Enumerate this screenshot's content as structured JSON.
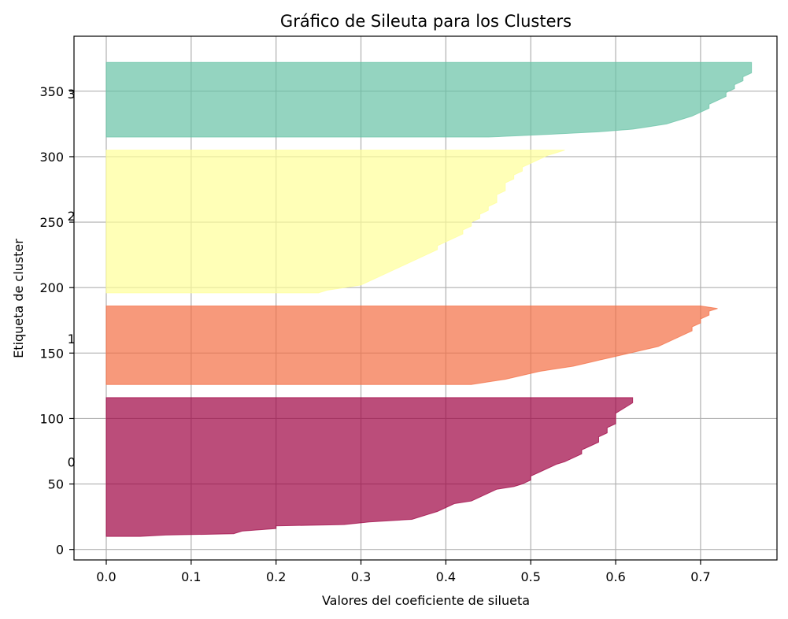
{
  "chart_data": {
    "type": "area",
    "title": "Gráfico de Sileuta para los Clusters",
    "xlabel": "Valores del coeficiente de silueta",
    "ylabel": "Etiqueta de cluster",
    "xlim": [
      -0.038,
      0.79
    ],
    "ylim": [
      -8,
      392
    ],
    "xticks": [
      0.0,
      0.1,
      0.2,
      0.3,
      0.4,
      0.5,
      0.6,
      0.7
    ],
    "xtick_labels": [
      "0.0",
      "0.1",
      "0.2",
      "0.3",
      "0.4",
      "0.5",
      "0.6",
      "0.7"
    ],
    "yticks": [
      0,
      50,
      100,
      150,
      200,
      250,
      300,
      350
    ],
    "ytick_labels": [
      "0",
      "50",
      "100",
      "150",
      "200",
      "250",
      "300",
      "350"
    ],
    "grid": true,
    "clusters": [
      {
        "label": "0",
        "label_y": 67,
        "color": "#9e0142",
        "y_lower": 10,
        "y_upper": 116,
        "profile": [
          [
            10,
            0.04
          ],
          [
            11,
            0.07
          ],
          [
            12,
            0.15
          ],
          [
            14,
            0.16
          ],
          [
            16,
            0.2
          ],
          [
            18,
            0.2
          ],
          [
            19,
            0.28
          ],
          [
            21,
            0.31
          ],
          [
            23,
            0.36
          ],
          [
            25,
            0.37
          ],
          [
            27,
            0.38
          ],
          [
            29,
            0.39
          ],
          [
            32,
            0.4
          ],
          [
            35,
            0.41
          ],
          [
            37,
            0.43
          ],
          [
            40,
            0.44
          ],
          [
            43,
            0.45
          ],
          [
            46,
            0.46
          ],
          [
            48,
            0.48
          ],
          [
            50,
            0.49
          ],
          [
            53,
            0.5
          ],
          [
            56,
            0.5
          ],
          [
            59,
            0.51
          ],
          [
            62,
            0.52
          ],
          [
            65,
            0.53
          ],
          [
            67,
            0.54
          ],
          [
            70,
            0.55
          ],
          [
            73,
            0.56
          ],
          [
            76,
            0.56
          ],
          [
            79,
            0.57
          ],
          [
            82,
            0.58
          ],
          [
            86,
            0.58
          ],
          [
            89,
            0.59
          ],
          [
            93,
            0.59
          ],
          [
            96,
            0.6
          ],
          [
            100,
            0.6
          ],
          [
            104,
            0.6
          ],
          [
            108,
            0.61
          ],
          [
            112,
            0.62
          ],
          [
            116,
            0.62
          ]
        ]
      },
      {
        "label": "1",
        "label_y": 161,
        "color": "#f46d43",
        "y_lower": 126,
        "y_upper": 186,
        "profile": [
          [
            126,
            0.43
          ],
          [
            128,
            0.45
          ],
          [
            130,
            0.47
          ],
          [
            133,
            0.49
          ],
          [
            136,
            0.51
          ],
          [
            138,
            0.53
          ],
          [
            140,
            0.55
          ],
          [
            143,
            0.57
          ],
          [
            146,
            0.59
          ],
          [
            149,
            0.61
          ],
          [
            152,
            0.63
          ],
          [
            155,
            0.65
          ],
          [
            158,
            0.66
          ],
          [
            161,
            0.67
          ],
          [
            164,
            0.68
          ],
          [
            167,
            0.69
          ],
          [
            170,
            0.69
          ],
          [
            173,
            0.7
          ],
          [
            176,
            0.7
          ],
          [
            179,
            0.71
          ],
          [
            182,
            0.71
          ],
          [
            184,
            0.72
          ],
          [
            186,
            0.7
          ]
        ]
      },
      {
        "label": "2",
        "label_y": 255,
        "color": "#ffff99",
        "y_lower": 196,
        "y_upper": 305,
        "profile": [
          [
            196,
            0.25
          ],
          [
            198,
            0.26
          ],
          [
            200,
            0.28
          ],
          [
            202,
            0.3
          ],
          [
            205,
            0.31
          ],
          [
            208,
            0.32
          ],
          [
            211,
            0.33
          ],
          [
            214,
            0.34
          ],
          [
            217,
            0.35
          ],
          [
            220,
            0.36
          ],
          [
            223,
            0.37
          ],
          [
            226,
            0.38
          ],
          [
            229,
            0.39
          ],
          [
            232,
            0.39
          ],
          [
            235,
            0.4
          ],
          [
            238,
            0.41
          ],
          [
            241,
            0.42
          ],
          [
            244,
            0.42
          ],
          [
            247,
            0.43
          ],
          [
            250,
            0.43
          ],
          [
            253,
            0.44
          ],
          [
            256,
            0.44
          ],
          [
            259,
            0.45
          ],
          [
            262,
            0.45
          ],
          [
            265,
            0.46
          ],
          [
            268,
            0.46
          ],
          [
            271,
            0.46
          ],
          [
            274,
            0.47
          ],
          [
            277,
            0.47
          ],
          [
            280,
            0.47
          ],
          [
            283,
            0.48
          ],
          [
            286,
            0.48
          ],
          [
            289,
            0.49
          ],
          [
            292,
            0.49
          ],
          [
            295,
            0.5
          ],
          [
            298,
            0.51
          ],
          [
            301,
            0.52
          ],
          [
            303,
            0.53
          ],
          [
            305,
            0.54
          ]
        ]
      },
      {
        "label": "3",
        "label_y": 348,
        "color": "#66c2a5",
        "y_lower": 315,
        "y_upper": 372,
        "profile": [
          [
            315,
            0.45
          ],
          [
            317,
            0.52
          ],
          [
            319,
            0.58
          ],
          [
            321,
            0.62
          ],
          [
            323,
            0.64
          ],
          [
            325,
            0.66
          ],
          [
            327,
            0.67
          ],
          [
            329,
            0.68
          ],
          [
            331,
            0.69
          ],
          [
            334,
            0.7
          ],
          [
            337,
            0.71
          ],
          [
            340,
            0.71
          ],
          [
            343,
            0.72
          ],
          [
            346,
            0.73
          ],
          [
            349,
            0.73
          ],
          [
            352,
            0.74
          ],
          [
            355,
            0.74
          ],
          [
            358,
            0.75
          ],
          [
            361,
            0.75
          ],
          [
            364,
            0.76
          ],
          [
            367,
            0.76
          ],
          [
            370,
            0.76
          ],
          [
            372,
            0.76
          ]
        ]
      }
    ]
  }
}
